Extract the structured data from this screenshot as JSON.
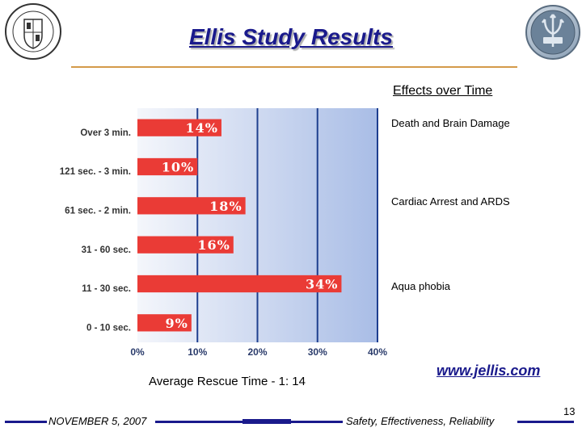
{
  "slide": {
    "title": "Ellis Study Results",
    "effects_title": "Effects over Time",
    "effects": [
      "Death and Brain Damage",
      "Cardiac Arrest and ARDS",
      "Aqua phobia"
    ],
    "website": "www.jellis.com",
    "average_rescue": "Average Rescue Time - 1: 14",
    "footer_date": "NOVEMBER 5, 2007",
    "footer_tagline": "Safety, Effectiveness, Reliability",
    "page_number": "13"
  },
  "colors": {
    "bar": "#ea3b36",
    "title": "#1a1a8c",
    "accent_rule": "#d49a4a",
    "grid": "#1e3f8f"
  },
  "chart_data": {
    "type": "bar",
    "orientation": "horizontal",
    "categories": [
      "Over 3 min.",
      "121 sec. - 3 min.",
      "61 sec. - 2 min.",
      "31 - 60 sec.",
      "11 - 30 sec.",
      "0 - 10 sec."
    ],
    "values": [
      14,
      10,
      18,
      16,
      34,
      9
    ],
    "data_labels": [
      "14%",
      "10%",
      "18%",
      "16%",
      "34%",
      "9%"
    ],
    "xticks": [
      "0%",
      "10%",
      "20%",
      "30%",
      "40%"
    ],
    "xlim": [
      0,
      40
    ],
    "grid": true
  }
}
